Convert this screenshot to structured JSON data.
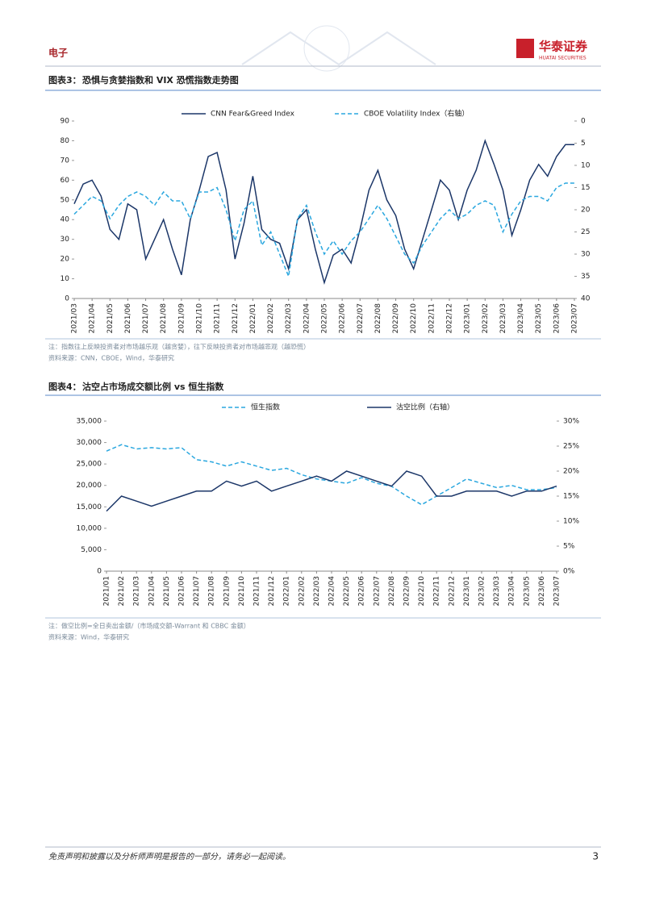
{
  "header": {
    "section": "电子",
    "logo_cn": "华泰证券",
    "logo_en": "HUATAI SECURITIES"
  },
  "chart_data": [
    {
      "type": "line",
      "figure_label": "图表3：",
      "title": "恐惧与贪婪指数和 VIX 恐慌指数走势图",
      "categories": [
        "2021/03",
        null,
        "2021/04",
        null,
        "2021/05",
        null,
        "2021/06",
        null,
        "2021/07",
        null,
        "2021/08",
        null,
        "2021/09",
        null,
        "2021/10",
        null,
        "2021/11",
        null,
        "2021/12",
        null,
        "2022/01",
        null,
        "2022/02",
        null,
        "2022/03",
        null,
        "2022/04",
        null,
        "2022/05",
        null,
        "2022/06",
        null,
        "2022/07",
        null,
        "2022/08",
        null,
        "2022/09",
        null,
        "2022/10",
        null,
        "2022/11",
        null,
        "2022/12",
        null,
        "2023/01",
        null,
        "2023/02",
        null,
        "2023/03",
        null,
        "2023/04",
        null,
        "2023/05",
        null,
        "2023/06",
        null,
        "2023/07"
      ],
      "series": [
        {
          "name": "CNN Fear&Greed Index",
          "color": "#1b3668",
          "line_style": "solid",
          "values": [
            48,
            58,
            60,
            52,
            35,
            30,
            48,
            45,
            20,
            30,
            40,
            25,
            12,
            40,
            55,
            72,
            74,
            55,
            20,
            38,
            62,
            35,
            30,
            28,
            15,
            40,
            45,
            25,
            8,
            22,
            25,
            18,
            35,
            55,
            65,
            50,
            42,
            25,
            15,
            30,
            45,
            60,
            55,
            40,
            55,
            65,
            80,
            68,
            55,
            32,
            45,
            60,
            68,
            62,
            72,
            78,
            78
          ]
        },
        {
          "name": "CBOE Volatility Index（右轴）",
          "color": "#2aa7df",
          "line_style": "dashed",
          "axis": "y2",
          "values": [
            21,
            19,
            17,
            18,
            22,
            19,
            17,
            16,
            17,
            19,
            16,
            18,
            18,
            22,
            16,
            16,
            15,
            20,
            27,
            20,
            18,
            28,
            25,
            30,
            35,
            22,
            19,
            25,
            30,
            27,
            30,
            27,
            25,
            22,
            19,
            22,
            26,
            30,
            32,
            28,
            25,
            22,
            20,
            22,
            21,
            19,
            18,
            19,
            25,
            21,
            18,
            17,
            17,
            18,
            15,
            14,
            14
          ]
        }
      ],
      "ylim": [
        0,
        90
      ],
      "yticks": [
        0,
        10,
        20,
        30,
        40,
        50,
        60,
        70,
        80,
        90
      ],
      "y2lim": [
        40,
        0
      ],
      "y2ticks": [
        0,
        5,
        10,
        15,
        20,
        25,
        30,
        35,
        40
      ],
      "legend": "top",
      "note": "注：指数往上反映投资者对市场越乐观（越贪婪），往下反映投资者对市场越悲观（越恐慌）",
      "source": "资料来源：CNN，CBOE，Wind，华泰研究"
    },
    {
      "type": "line",
      "figure_label": "图表4：",
      "title": "沽空占市场成交额比例 vs 恒生指数",
      "categories": [
        "2021/01",
        "2021/02",
        "2021/03",
        "2021/04",
        "2021/05",
        "2021/06",
        "2021/07",
        "2021/08",
        "2021/09",
        "2021/10",
        "2021/11",
        "2021/12",
        "2022/01",
        "2022/02",
        "2022/03",
        "2022/04",
        "2022/05",
        "2022/06",
        "2022/07",
        "2022/08",
        "2022/09",
        "2022/10",
        "2022/11",
        "2022/12",
        "2023/01",
        "2023/02",
        "2023/03",
        "2023/04",
        "2023/05",
        "2023/06",
        "2023/07"
      ],
      "series": [
        {
          "name": "恒生指数",
          "color": "#2aa7df",
          "line_style": "dashed",
          "values": [
            28000,
            29500,
            28500,
            28800,
            28500,
            28800,
            26000,
            25500,
            24500,
            25500,
            24500,
            23500,
            24000,
            22500,
            21500,
            21000,
            20500,
            21800,
            20500,
            19800,
            17500,
            15500,
            17500,
            19500,
            21500,
            20500,
            19500,
            20000,
            19000,
            19000,
            19500
          ]
        },
        {
          "name": "沽空比例（右轴）",
          "color": "#1b3668",
          "line_style": "solid",
          "axis": "y2",
          "values": [
            12,
            15,
            14,
            13,
            14,
            15,
            16,
            16,
            18,
            17,
            18,
            16,
            17,
            18,
            19,
            18,
            20,
            19,
            18,
            17,
            20,
            19,
            15,
            15,
            16,
            16,
            16,
            15,
            16,
            16,
            17
          ]
        }
      ],
      "ylim": [
        0,
        35000
      ],
      "yticks": [
        0,
        {
          "value": 5000,
          "label": "5,000"
        },
        {
          "value": 10000,
          "label": "10,000"
        },
        {
          "value": 15000,
          "label": "15,000"
        },
        {
          "value": 20000,
          "label": "20,000"
        },
        {
          "value": 25000,
          "label": "25,000"
        },
        {
          "value": 30000,
          "label": "30,000"
        },
        {
          "value": 35000,
          "label": "35,000"
        }
      ],
      "y2lim": [
        0,
        30
      ],
      "y2ticks": [
        {
          "value": 0,
          "label": "0%"
        },
        {
          "value": 5,
          "label": "5%"
        },
        {
          "value": 10,
          "label": "10%"
        },
        {
          "value": 15,
          "label": "15%"
        },
        {
          "value": 20,
          "label": "20%"
        },
        {
          "value": 25,
          "label": "25%"
        },
        {
          "value": 30,
          "label": "30%"
        }
      ],
      "legend": "top",
      "note": "注：做空比例=全日卖出金额/（市场成交额-Warrant 和 CBBC 金额）",
      "source": "资料来源：Wind，华泰研究"
    }
  ],
  "footer": {
    "disclaimer": "免责声明和披露以及分析师声明是报告的一部分，请务必一起阅读。",
    "page": "3"
  }
}
